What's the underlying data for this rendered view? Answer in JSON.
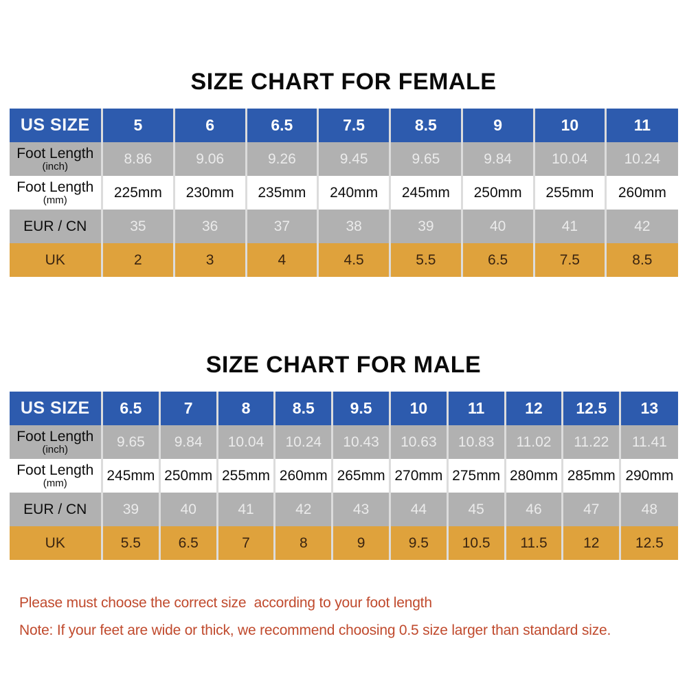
{
  "chart_data": [
    {
      "type": "table",
      "title": "SIZE CHART FOR FEMALE",
      "rows": [
        {
          "header": "US SIZE",
          "sub": "",
          "cells": [
            "5",
            "6",
            "6.5",
            "7.5",
            "8.5",
            "9",
            "10",
            "11"
          ]
        },
        {
          "header": "Foot Length",
          "sub": "(inch)",
          "cells": [
            "8.86",
            "9.06",
            "9.26",
            "9.45",
            "9.65",
            "9.84",
            "10.04",
            "10.24"
          ]
        },
        {
          "header": "Foot Length",
          "sub": "(mm)",
          "cells": [
            "225mm",
            "230mm",
            "235mm",
            "240mm",
            "245mm",
            "250mm",
            "255mm",
            "260mm"
          ]
        },
        {
          "header": "EUR / CN",
          "sub": "",
          "cells": [
            "35",
            "36",
            "37",
            "38",
            "39",
            "40",
            "41",
            "42"
          ]
        },
        {
          "header": "UK",
          "sub": "",
          "cells": [
            "2",
            "3",
            "4",
            "4.5",
            "5.5",
            "6.5",
            "7.5",
            "8.5"
          ]
        }
      ]
    },
    {
      "type": "table",
      "title": "SIZE CHART FOR MALE",
      "rows": [
        {
          "header": "US SIZE",
          "sub": "",
          "cells": [
            "6.5",
            "7",
            "8",
            "8.5",
            "9.5",
            "10",
            "11",
            "12",
            "12.5",
            "13"
          ]
        },
        {
          "header": "Foot Length",
          "sub": "(inch)",
          "cells": [
            "9.65",
            "9.84",
            "10.04",
            "10.24",
            "10.43",
            "10.63",
            "10.83",
            "11.02",
            "11.22",
            "11.41"
          ]
        },
        {
          "header": "Foot Length",
          "sub": "(mm)",
          "cells": [
            "245mm",
            "250mm",
            "255mm",
            "260mm",
            "265mm",
            "270mm",
            "275mm",
            "280mm",
            "285mm",
            "290mm"
          ]
        },
        {
          "header": "EUR / CN",
          "sub": "",
          "cells": [
            "39",
            "40",
            "41",
            "42",
            "43",
            "44",
            "45",
            "46",
            "47",
            "48"
          ]
        },
        {
          "header": "UK",
          "sub": "",
          "cells": [
            "5.5",
            "6.5",
            "7",
            "8",
            "9",
            "9.5",
            "10.5",
            "11.5",
            "12",
            "12.5"
          ]
        }
      ]
    }
  ],
  "notes": {
    "line1": "Please must choose the correct size  according to your foot length",
    "line2": "Note: If your feet are wide or thick, we recommend choosing 0.5 size larger than standard size."
  },
  "colors": {
    "header_blue": "#2d5bae",
    "row_gray": "#b1b1b1",
    "row_orange": "#dfa23c",
    "note_red": "#c04a2d"
  }
}
